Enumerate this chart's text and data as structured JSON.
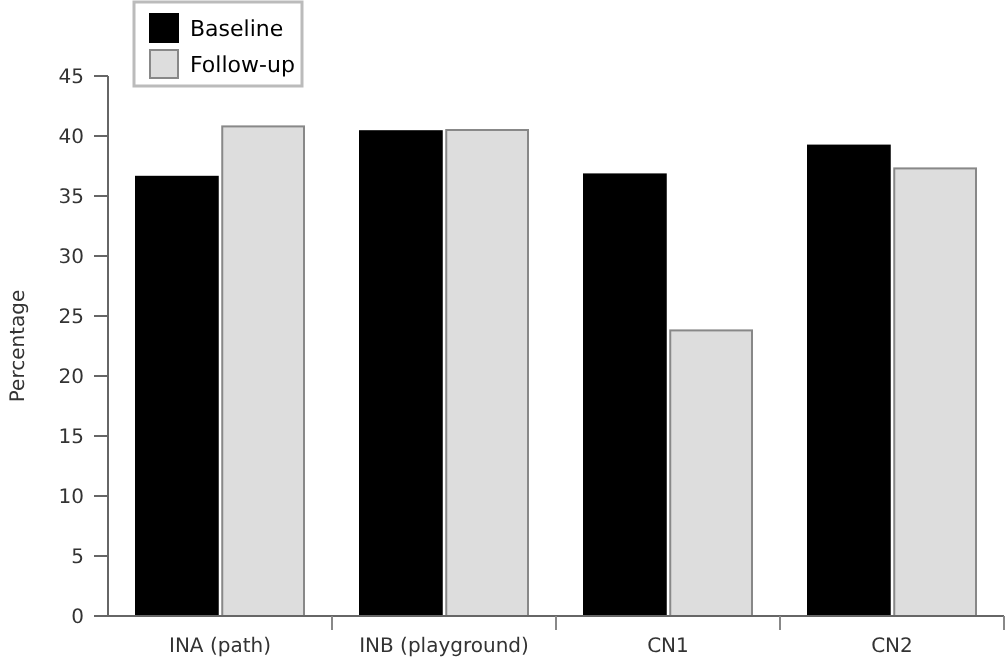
{
  "chart_data": {
    "type": "bar",
    "ylabel": "Percentage",
    "categories": [
      "INA (path)",
      "INB (playground)",
      "CN1",
      "CN2"
    ],
    "series": [
      {
        "name": "Baseline",
        "color": "#000000",
        "values": [
          36.6,
          40.4,
          36.8,
          39.2
        ]
      },
      {
        "name": "Follow-up",
        "color": "#dddddd",
        "values": [
          40.8,
          40.5,
          23.8,
          37.3
        ]
      }
    ],
    "ylim": [
      0,
      45
    ],
    "yticks": [
      0,
      5,
      10,
      15,
      20,
      25,
      30,
      35,
      40,
      45
    ],
    "grid": false,
    "legend": "top left"
  }
}
